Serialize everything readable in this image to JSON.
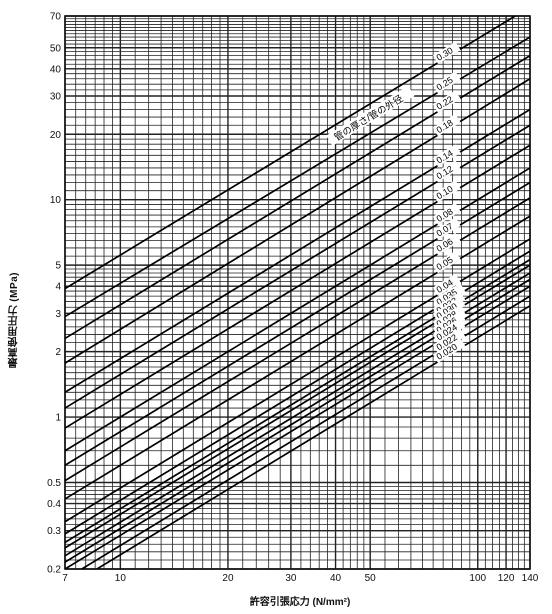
{
  "chart_data": {
    "type": "line",
    "title": "",
    "xlabel": "許容引張応力 (N/mm²)",
    "ylabel": "最高使用圧力 (MPa)",
    "x_scale": "log",
    "y_scale": "log",
    "xlim": [
      7,
      140
    ],
    "ylim": [
      0.2,
      70
    ],
    "grid": true,
    "x_ticks": [
      7,
      10,
      20,
      30,
      40,
      50,
      100,
      120,
      140
    ],
    "x_tick_labels": [
      "7",
      "10",
      "20",
      "30",
      "40",
      "50",
      "100",
      "120",
      "140"
    ],
    "y_ticks": [
      0.2,
      0.3,
      0.4,
      0.5,
      1,
      2,
      3,
      4,
      5,
      10,
      20,
      30,
      40,
      50,
      70
    ],
    "y_tick_labels": [
      "0.2",
      "0.3",
      "0.4",
      "0.5",
      "1",
      "2",
      "3",
      "4",
      "5",
      "10",
      "20",
      "30",
      "40",
      "50",
      "70"
    ],
    "curve_label_title": "管の厚さ/管の外径",
    "series": [
      {
        "name": "0.30",
        "x": [
          7,
          140
        ],
        "y": [
          3.9,
          77
        ]
      },
      {
        "name": "0.25",
        "x": [
          7,
          140
        ],
        "y": [
          2.9,
          56
        ]
      },
      {
        "name": "0.22",
        "x": [
          7,
          140
        ],
        "y": [
          2.3,
          46
        ]
      },
      {
        "name": "0.18",
        "x": [
          7,
          140
        ],
        "y": [
          1.77,
          36
        ]
      },
      {
        "name": "0.14",
        "x": [
          7,
          140
        ],
        "y": [
          1.3,
          26
        ]
      },
      {
        "name": "0.12",
        "x": [
          7,
          140
        ],
        "y": [
          1.1,
          22
        ]
      },
      {
        "name": "0.10",
        "x": [
          7,
          140
        ],
        "y": [
          0.89,
          17.8
        ]
      },
      {
        "name": "0.08",
        "x": [
          7,
          140
        ],
        "y": [
          0.7,
          14
        ]
      },
      {
        "name": "0.07",
        "x": [
          7,
          140
        ],
        "y": [
          0.6,
          12
        ]
      },
      {
        "name": "0.06",
        "x": [
          7,
          140
        ],
        "y": [
          0.51,
          10.2
        ]
      },
      {
        "name": "0.05",
        "x": [
          7,
          140
        ],
        "y": [
          0.42,
          8.4
        ]
      },
      {
        "name": "0.04",
        "x": [
          7,
          140
        ],
        "y": [
          0.33,
          6.6
        ]
      },
      {
        "name": "0.035",
        "x": [
          7,
          140
        ],
        "y": [
          0.29,
          5.8
        ]
      },
      {
        "name": "0.032",
        "x": [
          7,
          140
        ],
        "y": [
          0.265,
          5.3
        ]
      },
      {
        "name": "0.030",
        "x": [
          7,
          140
        ],
        "y": [
          0.25,
          5.0
        ]
      },
      {
        "name": "0.028",
        "x": [
          7,
          140
        ],
        "y": [
          0.23,
          4.6
        ]
      },
      {
        "name": "0.026",
        "x": [
          7,
          140
        ],
        "y": [
          0.215,
          4.3
        ]
      },
      {
        "name": "0.024",
        "x": [
          7,
          140
        ],
        "y": [
          0.2,
          4.0
        ]
      },
      {
        "name": "0.022",
        "x": [
          7.8,
          140
        ],
        "y": [
          0.2,
          3.6
        ]
      },
      {
        "name": "0.020",
        "x": [
          8.6,
          140
        ],
        "y": [
          0.2,
          3.25
        ]
      }
    ]
  }
}
